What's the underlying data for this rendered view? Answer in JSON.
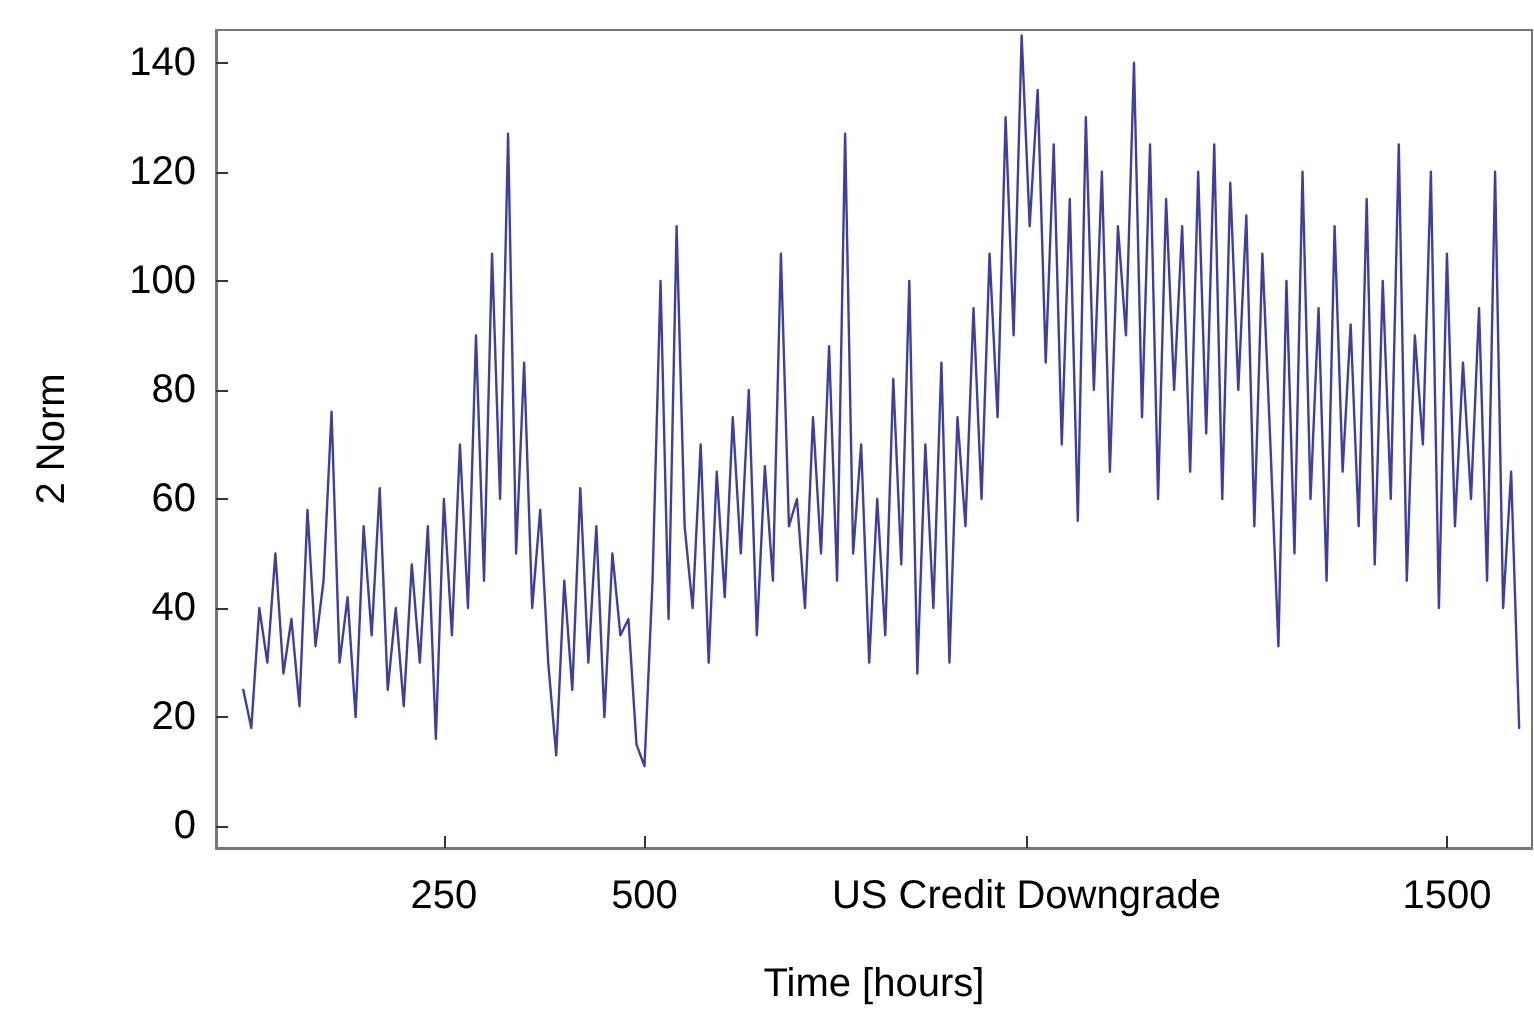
{
  "chart_data": {
    "type": "line",
    "xlabel": "Time [hours]",
    "ylabel": "2 Norm",
    "x": [
      0,
      10,
      20,
      30,
      40,
      50,
      60,
      70,
      80,
      90,
      100,
      110,
      120,
      130,
      140,
      150,
      160,
      170,
      180,
      190,
      200,
      210,
      220,
      230,
      240,
      250,
      260,
      270,
      280,
      290,
      300,
      310,
      320,
      330,
      340,
      350,
      360,
      370,
      380,
      390,
      400,
      410,
      420,
      430,
      440,
      450,
      460,
      470,
      480,
      490,
      500,
      510,
      520,
      530,
      540,
      550,
      560,
      570,
      580,
      590,
      600,
      610,
      620,
      630,
      640,
      650,
      660,
      670,
      680,
      690,
      700,
      710,
      720,
      730,
      740,
      750,
      760,
      770,
      780,
      790,
      800,
      810,
      820,
      830,
      840,
      850,
      860,
      870,
      880,
      890,
      900,
      910,
      920,
      930,
      940,
      950,
      960,
      970,
      980,
      990,
      1000,
      1010,
      1020,
      1030,
      1040,
      1050,
      1060,
      1070,
      1080,
      1090,
      1100,
      1110,
      1120,
      1130,
      1140,
      1150,
      1160,
      1170,
      1180,
      1190,
      1200,
      1210,
      1220,
      1230,
      1240,
      1250,
      1260,
      1270,
      1280,
      1290,
      1300,
      1310,
      1320,
      1330,
      1340,
      1350,
      1360,
      1370,
      1380,
      1390,
      1400,
      1410,
      1420,
      1430,
      1440,
      1450,
      1460,
      1470,
      1480,
      1490,
      1500,
      1510,
      1520,
      1530,
      1540,
      1550,
      1560,
      1570,
      1580,
      1590
    ],
    "series": [
      {
        "color": "#3f3f9f",
        "values": [
          25,
          18,
          40,
          30,
          50,
          28,
          38,
          22,
          58,
          33,
          45,
          76,
          30,
          42,
          20,
          55,
          35,
          62,
          25,
          40,
          22,
          48,
          30,
          55,
          16,
          60,
          35,
          70,
          40,
          90,
          45,
          105,
          60,
          127,
          50,
          85,
          40,
          58,
          30,
          13,
          45,
          25,
          62,
          30,
          55,
          20,
          50,
          35,
          38,
          15,
          11,
          45,
          100,
          38,
          110,
          55,
          40,
          70,
          30,
          65,
          42,
          75,
          50,
          80,
          35,
          66,
          45,
          105,
          55,
          60,
          40,
          75,
          50,
          88,
          45,
          127,
          50,
          70,
          30,
          60,
          35,
          82,
          48,
          100,
          28,
          70,
          40,
          85,
          30,
          75,
          55,
          95,
          60,
          105,
          75,
          130,
          90,
          145,
          110,
          135,
          85,
          125,
          70,
          115,
          56,
          130,
          80,
          120,
          65,
          110,
          90,
          140,
          75,
          125,
          60,
          115,
          80,
          110,
          65,
          120,
          72,
          125,
          60,
          118,
          80,
          112,
          55,
          105,
          70,
          33,
          100,
          50,
          120,
          60,
          95,
          45,
          110,
          65,
          92,
          55,
          115,
          48,
          100,
          60,
          125,
          45,
          90,
          70,
          120,
          40,
          105,
          55,
          85,
          60,
          95,
          45,
          120,
          40,
          65,
          18
        ]
      }
    ],
    "xlim": [
      -34,
      1606
    ],
    "xticks": [
      250,
      500,
      {
        "value": 976,
        "label": "US Credit Downgrade"
      },
      1500
    ],
    "ylim": [
      -4,
      146
    ],
    "yticks": [
      0,
      20,
      40,
      60,
      80,
      100,
      120,
      140
    ],
    "grid": false,
    "marker": "none",
    "line_style": "solid"
  }
}
